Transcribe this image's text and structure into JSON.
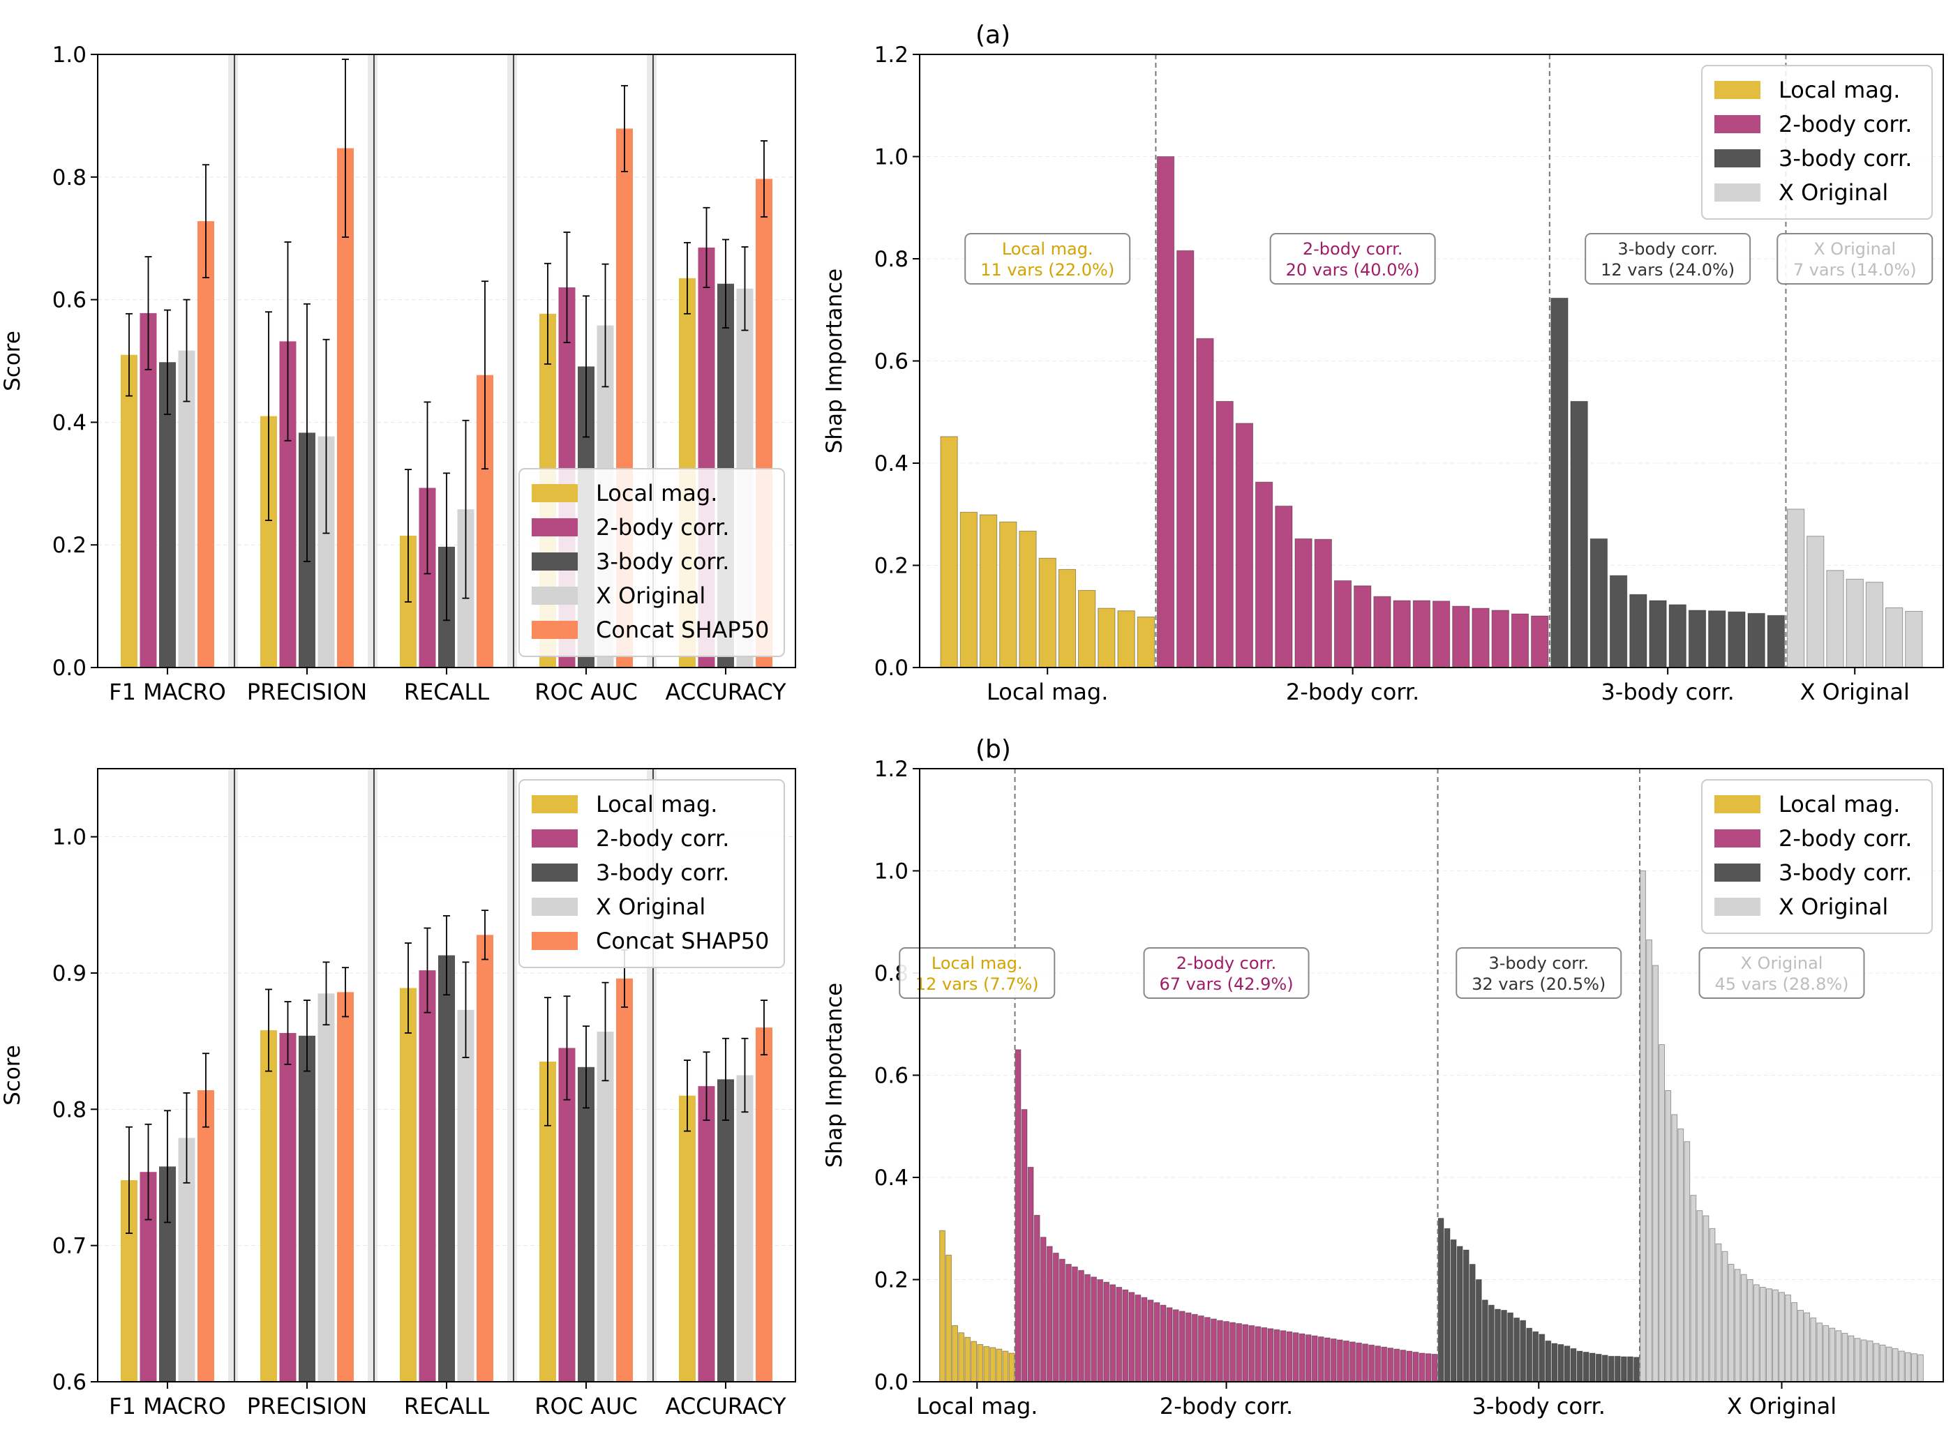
{
  "colors": {
    "local": "#E3BD3F",
    "two": "#B54A82",
    "three": "#555555",
    "orig": "#D3D3D3",
    "concat": "#FA8A5B",
    "local_text": "#D4A300",
    "two_text": "#A01B68",
    "three_text": "#333333",
    "orig_text": "#BDBDBD"
  },
  "chart_data": [
    {
      "id": "top-left",
      "type": "bar",
      "title": "",
      "ylabel": "Score",
      "ylim": [
        0,
        1.0
      ],
      "yticks": [
        0.0,
        0.2,
        0.4,
        0.6,
        0.8,
        1.0
      ],
      "ytick_labels": [
        "0.0",
        "0.2",
        "0.4",
        "0.6",
        "0.8",
        "1.0"
      ],
      "categories": [
        "F1 MACRO",
        "PRECISION",
        "RECALL",
        "ROC AUC",
        "ACCURACY"
      ],
      "legend_position": "lower-right",
      "series": [
        {
          "name": "Local mag.",
          "color_key": "local",
          "values": [
            0.51,
            0.41,
            0.215,
            0.577,
            0.635
          ],
          "err": [
            0.067,
            0.17,
            0.108,
            0.082,
            0.058
          ]
        },
        {
          "name": "2-body corr.",
          "color_key": "two",
          "values": [
            0.578,
            0.532,
            0.293,
            0.62,
            0.685
          ],
          "err": [
            0.092,
            0.162,
            0.14,
            0.09,
            0.065
          ]
        },
        {
          "name": "3-body corr.",
          "color_key": "three",
          "values": [
            0.498,
            0.383,
            0.197,
            0.491,
            0.626
          ],
          "err": [
            0.085,
            0.21,
            0.12,
            0.115,
            0.072
          ]
        },
        {
          "name": "X Original",
          "color_key": "orig",
          "values": [
            0.517,
            0.377,
            0.258,
            0.558,
            0.618
          ],
          "err": [
            0.083,
            0.158,
            0.145,
            0.1,
            0.068
          ]
        },
        {
          "name": "Concat SHAP50",
          "color_key": "concat",
          "values": [
            0.728,
            0.847,
            0.477,
            0.879,
            0.797
          ],
          "err": [
            0.092,
            0.145,
            0.153,
            0.07,
            0.062
          ]
        }
      ]
    },
    {
      "id": "bottom-left",
      "type": "bar",
      "title": "",
      "ylabel": "Score",
      "ylim": [
        0.6,
        1.05
      ],
      "yticks": [
        0.6,
        0.7,
        0.8,
        0.9,
        1.0
      ],
      "ytick_labels": [
        "0.6",
        "0.7",
        "0.8",
        "0.9",
        "1.0"
      ],
      "categories": [
        "F1 MACRO",
        "PRECISION",
        "RECALL",
        "ROC AUC",
        "ACCURACY"
      ],
      "legend_position": "upper-right",
      "series": [
        {
          "name": "Local mag.",
          "color_key": "local",
          "values": [
            0.748,
            0.858,
            0.889,
            0.835,
            0.81
          ],
          "err": [
            0.039,
            0.03,
            0.033,
            0.047,
            0.026
          ]
        },
        {
          "name": "2-body corr.",
          "color_key": "two",
          "values": [
            0.754,
            0.856,
            0.902,
            0.845,
            0.817
          ],
          "err": [
            0.035,
            0.023,
            0.031,
            0.038,
            0.025
          ]
        },
        {
          "name": "3-body corr.",
          "color_key": "three",
          "values": [
            0.758,
            0.854,
            0.913,
            0.831,
            0.822
          ],
          "err": [
            0.041,
            0.026,
            0.029,
            0.03,
            0.03
          ]
        },
        {
          "name": "X Original",
          "color_key": "orig",
          "values": [
            0.779,
            0.885,
            0.873,
            0.857,
            0.825
          ],
          "err": [
            0.033,
            0.023,
            0.035,
            0.036,
            0.027
          ]
        },
        {
          "name": "Concat SHAP50",
          "color_key": "concat",
          "values": [
            0.814,
            0.886,
            0.928,
            0.896,
            0.86
          ],
          "err": [
            0.027,
            0.018,
            0.018,
            0.021,
            0.02
          ]
        }
      ]
    },
    {
      "id": "top-right",
      "type": "bar",
      "title": "(a)",
      "ylabel": "Shap Importance",
      "ylim": [
        0,
        1.2
      ],
      "yticks": [
        0.0,
        0.2,
        0.4,
        0.6,
        0.8,
        1.0,
        1.2
      ],
      "ytick_labels": [
        "0.0",
        "0.2",
        "0.4",
        "0.6",
        "0.8",
        "1.0",
        "1.2"
      ],
      "legend_position": "upper-right",
      "groups": [
        {
          "name": "Local mag.",
          "color_key": "local",
          "text_key": "local_text",
          "box": [
            "Local mag.",
            "11 vars (22.0%)"
          ],
          "values": [
            0.452,
            0.304,
            0.299,
            0.285,
            0.267,
            0.214,
            0.192,
            0.151,
            0.116,
            0.111,
            0.099
          ]
        },
        {
          "name": "2-body corr.",
          "color_key": "two",
          "text_key": "two_text",
          "box": [
            "2-body corr.",
            "20 vars (40.0%)"
          ],
          "values": [
            1.0,
            0.816,
            0.644,
            0.521,
            0.478,
            0.363,
            0.316,
            0.252,
            0.251,
            0.17,
            0.16,
            0.139,
            0.131,
            0.131,
            0.13,
            0.12,
            0.116,
            0.112,
            0.105,
            0.101
          ]
        },
        {
          "name": "3-body corr.",
          "color_key": "three",
          "text_key": "three_text",
          "box": [
            "3-body corr.",
            "12 vars (24.0%)"
          ],
          "values": [
            0.723,
            0.521,
            0.252,
            0.18,
            0.143,
            0.131,
            0.123,
            0.112,
            0.111,
            0.109,
            0.106,
            0.102
          ]
        },
        {
          "name": "X Original",
          "color_key": "orig",
          "text_key": "orig_text",
          "box": [
            "X Original",
            "7 vars (14.0%)"
          ],
          "values": [
            0.31,
            0.257,
            0.19,
            0.173,
            0.167,
            0.117,
            0.11
          ]
        }
      ]
    },
    {
      "id": "bottom-right",
      "type": "bar",
      "title": "(b)",
      "ylabel": "Shap Importance",
      "ylim": [
        0,
        1.2
      ],
      "yticks": [
        0.0,
        0.2,
        0.4,
        0.6,
        0.8,
        1.0,
        1.2
      ],
      "ytick_labels": [
        "0.0",
        "0.2",
        "0.4",
        "0.6",
        "0.8",
        "1.0",
        "1.2"
      ],
      "legend_position": "upper-right",
      "groups": [
        {
          "name": "Local mag.",
          "color_key": "local",
          "text_key": "local_text",
          "box": [
            "Local mag.",
            "12 vars (7.7%)"
          ],
          "values": [
            0.296,
            0.248,
            0.11,
            0.096,
            0.087,
            0.079,
            0.073,
            0.069,
            0.067,
            0.064,
            0.06,
            0.056
          ]
        },
        {
          "name": "2-body corr.",
          "color_key": "two",
          "text_key": "two_text",
          "box": [
            "2-body corr.",
            "67 vars (42.9%)"
          ],
          "values": [
            0.65,
            0.533,
            0.42,
            0.326,
            0.283,
            0.265,
            0.252,
            0.24,
            0.23,
            0.225,
            0.218,
            0.21,
            0.205,
            0.2,
            0.195,
            0.19,
            0.185,
            0.18,
            0.175,
            0.17,
            0.165,
            0.16,
            0.155,
            0.15,
            0.145,
            0.141,
            0.138,
            0.135,
            0.132,
            0.129,
            0.126,
            0.123,
            0.12,
            0.118,
            0.116,
            0.114,
            0.112,
            0.11,
            0.108,
            0.106,
            0.104,
            0.102,
            0.1,
            0.098,
            0.096,
            0.094,
            0.092,
            0.09,
            0.088,
            0.086,
            0.084,
            0.082,
            0.08,
            0.078,
            0.076,
            0.074,
            0.072,
            0.07,
            0.068,
            0.066,
            0.064,
            0.062,
            0.06,
            0.058,
            0.056,
            0.055,
            0.054
          ]
        },
        {
          "name": "3-body corr.",
          "color_key": "three",
          "text_key": "three_text",
          "box": [
            "3-body corr.",
            "32 vars (20.5%)"
          ],
          "values": [
            0.32,
            0.3,
            0.278,
            0.265,
            0.258,
            0.23,
            0.2,
            0.16,
            0.15,
            0.142,
            0.14,
            0.135,
            0.125,
            0.12,
            0.105,
            0.098,
            0.093,
            0.08,
            0.075,
            0.073,
            0.07,
            0.065,
            0.06,
            0.058,
            0.056,
            0.054,
            0.052,
            0.05,
            0.05,
            0.049,
            0.049,
            0.048
          ]
        },
        {
          "name": "X Original",
          "color_key": "orig",
          "text_key": "orig_text",
          "box": [
            "X Original",
            "45 vars (28.8%)"
          ],
          "values": [
            1.0,
            0.865,
            0.815,
            0.66,
            0.57,
            0.523,
            0.495,
            0.47,
            0.365,
            0.335,
            0.325,
            0.3,
            0.27,
            0.255,
            0.23,
            0.22,
            0.21,
            0.2,
            0.19,
            0.185,
            0.182,
            0.18,
            0.175,
            0.17,
            0.155,
            0.14,
            0.135,
            0.125,
            0.115,
            0.11,
            0.105,
            0.1,
            0.095,
            0.09,
            0.085,
            0.082,
            0.08,
            0.075,
            0.072,
            0.068,
            0.065,
            0.06,
            0.057,
            0.055,
            0.053
          ]
        }
      ]
    }
  ]
}
